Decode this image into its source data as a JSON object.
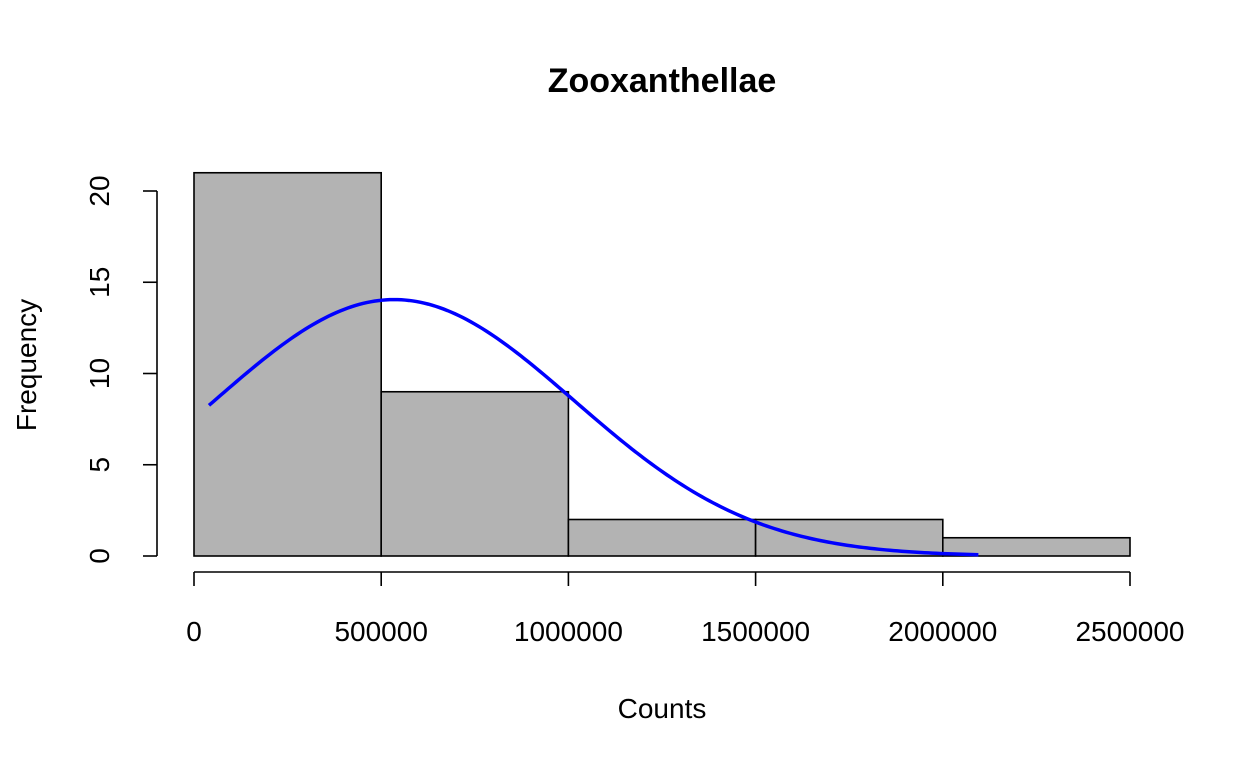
{
  "chart_data": {
    "type": "bar",
    "title": "Zooxanthellae",
    "xlabel": "Counts",
    "ylabel": "Frequency",
    "bins": [
      {
        "start": 0,
        "end": 500000,
        "count": 21
      },
      {
        "start": 500000,
        "end": 1000000,
        "count": 9
      },
      {
        "start": 1000000,
        "end": 1500000,
        "count": 2
      },
      {
        "start": 1500000,
        "end": 2000000,
        "count": 2
      },
      {
        "start": 2000000,
        "end": 2500000,
        "count": 1
      }
    ],
    "xlim": [
      0,
      2500000
    ],
    "ylim": [
      0,
      21
    ],
    "xticks": [
      0,
      500000,
      1000000,
      1500000,
      2000000,
      2500000
    ],
    "xtick_labels": [
      "0",
      "500000",
      "1000000",
      "1500000",
      "2000000",
      "2500000"
    ],
    "yticks": [
      0,
      5,
      10,
      15,
      20
    ],
    "ytick_labels": [
      "0",
      "5",
      "10",
      "15",
      "20"
    ],
    "curve": {
      "type": "normal-density",
      "mean": 535000,
      "peak": 14.05,
      "sd": 480000,
      "x_range": [
        40000,
        2095000
      ]
    },
    "grid": false,
    "bar_color": "#b3b3b3",
    "bar_edge_color": "#000000",
    "curve_color": "#0000ff"
  }
}
